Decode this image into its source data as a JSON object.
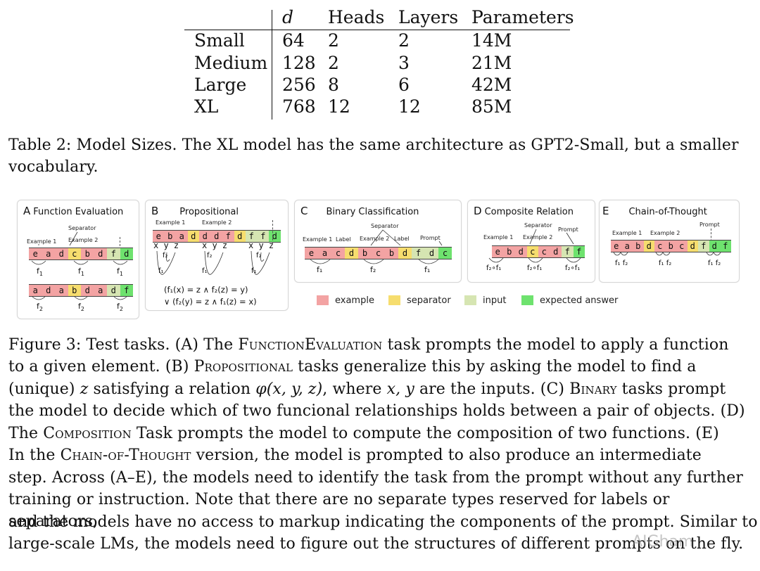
{
  "table": {
    "headers": [
      "d",
      "Heads",
      "Layers",
      "Parameters"
    ],
    "rows": [
      {
        "name": "Small",
        "d": "64",
        "heads": "2",
        "layers": "2",
        "params": "14M"
      },
      {
        "name": "Medium",
        "d": "128",
        "heads": "2",
        "layers": "3",
        "params": "21M"
      },
      {
        "name": "Large",
        "d": "256",
        "heads": "8",
        "layers": "6",
        "params": "42M"
      },
      {
        "name": "XL",
        "d": "768",
        "heads": "12",
        "layers": "12",
        "params": "85M"
      }
    ]
  },
  "table_caption": {
    "line1": "Table 2: Model Sizes. The XL model has the same architecture as GPT2-Small, but a smaller",
    "line2": "vocabulary."
  },
  "figure": {
    "colors": {
      "example": "#f3a3a3",
      "separator": "#f6dd6e",
      "input": "#d6e5b2",
      "expected": "#6ee26e"
    },
    "panelA": {
      "letter": "A",
      "title": "Function Evaluation",
      "separator": "Separator",
      "example1": "Example 1",
      "example2": "Example 2",
      "row1": [
        "e",
        "a",
        "d",
        "c",
        "b",
        "d",
        "f",
        "d"
      ],
      "row2": [
        "a",
        "d",
        "a",
        "b",
        "d",
        "a",
        "d",
        "f"
      ],
      "f1": "f",
      "f1_sub": "1",
      "f2": "f",
      "f2_sub": "2"
    },
    "panelB": {
      "letter": "B",
      "title": "Propositional",
      "example1": "Example 1",
      "example2": "Example 2",
      "row": [
        "e",
        "b",
        "a",
        "d",
        "d",
        "d",
        "f",
        "d",
        "f",
        "f",
        "d"
      ],
      "xyz": "x y z",
      "eq1": "(f₁(x) = z ∧ f₂(z) = y)",
      "eq2": "∨ (f₂(y) = z ∧ f₁(z) = x)",
      "f1": "f₁",
      "f2": "f₂"
    },
    "panelC": {
      "letter": "C",
      "title": "Binary Classification",
      "separator": "Separator",
      "example1": "Example 1",
      "label": "Label",
      "example2": "Example 2",
      "label2": "Label",
      "prompt": "Prompt",
      "row": [
        "e",
        "a",
        "c",
        "d",
        "b",
        "c",
        "b",
        "d",
        "f",
        "d",
        "c"
      ],
      "f1": "f₁",
      "f2": "f₂"
    },
    "panelD": {
      "letter": "D",
      "title": "Composite Relation",
      "separator": "Separator",
      "prompt": "Prompt",
      "example1": "Example 1",
      "example2": "Example 2",
      "row": [
        "e",
        "b",
        "d",
        "c",
        "c",
        "d",
        "f",
        "f"
      ],
      "comp": "f₂∘f₁"
    },
    "panelE": {
      "letter": "E",
      "title": "Chain-of-Thought",
      "prompt": "Prompt",
      "example1": "Example 1",
      "example2": "Example 2",
      "row": [
        "e",
        "a",
        "b",
        "d",
        "c",
        "b",
        "c",
        "d",
        "f",
        "d",
        "f"
      ],
      "f12": "f₁ f₂"
    },
    "legend": {
      "example": "example",
      "separator": "separator",
      "input": "input",
      "expected": "expected answer"
    }
  },
  "figure_caption": {
    "l1a": "Figure 3: Test tasks. (A) The ",
    "l1b": "FunctionEvaluation",
    "l1c": " task prompts the model to apply a function",
    "l2a": "to a given element. (B) ",
    "l2b": "Propositional",
    "l2c": " tasks generalize this by asking the model to find a",
    "l3a": "(unique) ",
    "l3b": "z",
    "l3c": " satisfying a relation ",
    "l3d": "φ(x, y, z)",
    "l3e": ", where ",
    "l3f": "x, y",
    "l3g": " are the inputs. (C) ",
    "l3h": "Binary",
    "l3i": " tasks prompt",
    "l4": "the model to decide which of two funcional relationships holds between a pair of objects. (D)",
    "l5a": "The ",
    "l5b": "Composition",
    "l5c": " Task prompts the model to compute the composition of two functions. (E)",
    "l6a": "In the ",
    "l6b": "Chain-of-Thought",
    "l6c": " version, the model is prompted to also produce an intermediate",
    "l7": "step. Across (A–E), the models need to identify the task from the prompt without any further",
    "l8": "training or instruction. Note that there are no separate types reserved for labels or separators,",
    "l9": "and the models have no access to markup indicating the components of the prompt. Similar to",
    "l10": "large-scale LMs, the models need to figure out the structures of different prompts on the fly."
  },
  "watermark": "AIGham"
}
